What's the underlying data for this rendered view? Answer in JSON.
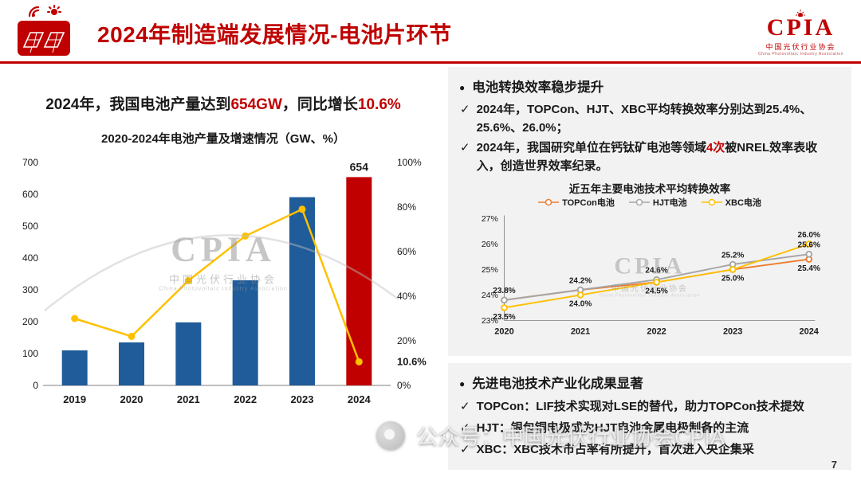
{
  "ui": {
    "bullet": "●",
    "check": "✓"
  },
  "header": {
    "title": "2024年制造端发展情况-电池片环节",
    "logo_text": "CPIA",
    "logo_sub": "中国光伏行业协会",
    "logo_sub_en": "China Photovoltaic Industry Association"
  },
  "left": {
    "headline": {
      "p1": "2024年，我国电池产量达到",
      "h1": "654GW",
      "p2": "，同比增长",
      "h2": "10.6%"
    }
  },
  "right": {
    "section1": {
      "title": "电池转换效率稳步提升",
      "item1": "2024年，TOPCon、HJT、XBC平均转换效率分别达到25.4%、25.6%、26.0%；",
      "item2_pre": "2024年，我国研究单位在钙钛矿电池等领域",
      "item2_red": "4次",
      "item2_post": "被NREL效率表收入，创造世界效率纪录。"
    },
    "section2": {
      "title": "先进电池技术产业化成果显著",
      "items": [
        "TOPCon：LIF技术实现对LSE的替代，助力TOPCon技术提效",
        "HJT：银包铜电极成为HJT电池金属电极制备的主流",
        "XBC：XBC技术市占率有所提升，首次进入央企集采"
      ]
    }
  },
  "watermark": {
    "brand": "CPIA",
    "brand_sub": "中国光伏行业协会",
    "brand_sub_en": "China Photovoltaic Industry Association",
    "bottom": "公众号：中国光伏行业协会CPIA"
  },
  "page_number": "7",
  "colors": {
    "accent_red": "#C00000",
    "bar_blue": "#1F5C99",
    "growth_yellow": "#FFC000"
  },
  "chart_data": [
    {
      "type": "bar",
      "title": "2020-2024年电池产量及增速情况（GW、%）",
      "categories": [
        "2019",
        "2020",
        "2021",
        "2022",
        "2023",
        "2024"
      ],
      "bar_series": {
        "name": "电池产量(GW)",
        "values": [
          110,
          135,
          198,
          330,
          591,
          654
        ],
        "color": "#1F5C99",
        "highlight_index": 5,
        "highlight_color": "#C00000",
        "labels": {
          "5": "654"
        }
      },
      "line_series": {
        "name": "同比增速(%)",
        "values": [
          30,
          22,
          47,
          67,
          79,
          10.6
        ],
        "color": "#FFC000",
        "labels": {
          "5": "10.6%"
        }
      },
      "left_axis": {
        "min": 0,
        "max": 700,
        "step": 100
      },
      "right_axis": {
        "min": 0,
        "max": 100,
        "step": 20,
        "suffix": "%"
      },
      "grid": false,
      "legend": "none"
    },
    {
      "type": "line",
      "title": "近五年主要电池技术平均转换效率",
      "categories": [
        "2020",
        "2021",
        "2022",
        "2023",
        "2024"
      ],
      "series": [
        {
          "name": "TOPCon电池",
          "color": "#ED7D31",
          "values": [
            23.8,
            24.2,
            24.5,
            25.0,
            25.4
          ]
        },
        {
          "name": "HJT电池",
          "color": "#A6A6A6",
          "values": [
            23.8,
            24.2,
            24.6,
            25.2,
            25.6
          ]
        },
        {
          "name": "XBC电池",
          "color": "#FFC000",
          "values": [
            23.5,
            24.0,
            24.5,
            25.0,
            26.0
          ]
        }
      ],
      "y_axis": {
        "min": 23,
        "max": 27,
        "step": 1,
        "suffix": "%"
      },
      "point_labels": [
        {
          "series": 0,
          "i": 0,
          "text": "23.8%",
          "pos": "above"
        },
        {
          "series": 2,
          "i": 0,
          "text": "23.5%",
          "pos": "below"
        },
        {
          "series": 0,
          "i": 1,
          "text": "24.2%",
          "pos": "above"
        },
        {
          "series": 2,
          "i": 1,
          "text": "24.0%",
          "pos": "below"
        },
        {
          "series": 1,
          "i": 2,
          "text": "24.6%",
          "pos": "above"
        },
        {
          "series": 0,
          "i": 2,
          "text": "24.5%",
          "pos": "below"
        },
        {
          "series": 1,
          "i": 3,
          "text": "25.2%",
          "pos": "above"
        },
        {
          "series": 0,
          "i": 3,
          "text": "25.0%",
          "pos": "below"
        },
        {
          "series": 2,
          "i": 4,
          "text": "26.0%",
          "pos": "above"
        },
        {
          "series": 1,
          "i": 4,
          "text": "25.6%",
          "pos": "above"
        },
        {
          "series": 0,
          "i": 4,
          "text": "25.4%",
          "pos": "below"
        }
      ],
      "grid": false,
      "legend": "top"
    }
  ]
}
